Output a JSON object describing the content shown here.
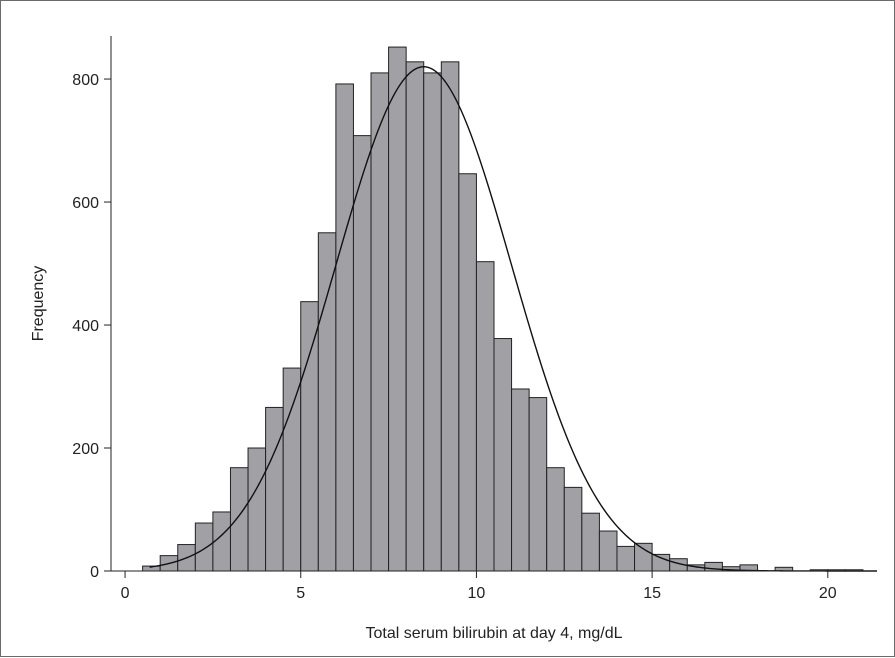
{
  "chart_data": {
    "type": "bar",
    "subtype": "histogram-with-normal-curve",
    "xlabel": "Total serum bilirubin at day 4, mg/dL",
    "ylabel": "Frequency",
    "xlim": [
      -0.4,
      21.4
    ],
    "ylim": [
      0,
      870
    ],
    "x_ticks": [
      0,
      5,
      10,
      15,
      20
    ],
    "y_ticks": [
      0,
      200,
      400,
      600,
      800
    ],
    "grid": false,
    "bar_color": "#a1a1a5",
    "bar_edge_color": "#222222",
    "curve_color": "#111111",
    "bin_width": 0.5,
    "bin_start": 0.5,
    "values": [
      8,
      25,
      43,
      78,
      96,
      168,
      200,
      266,
      330,
      438,
      550,
      792,
      708,
      810,
      852,
      828,
      810,
      828,
      646,
      503,
      378,
      296,
      282,
      168,
      136,
      94,
      65,
      40,
      45,
      27,
      20,
      10,
      14,
      7,
      10,
      0,
      6,
      0,
      2,
      2,
      2
    ],
    "normal_curve": {
      "mean": 8.5,
      "sd": 2.5,
      "peak": 820,
      "x_range": [
        0.7,
        21.4
      ]
    }
  }
}
